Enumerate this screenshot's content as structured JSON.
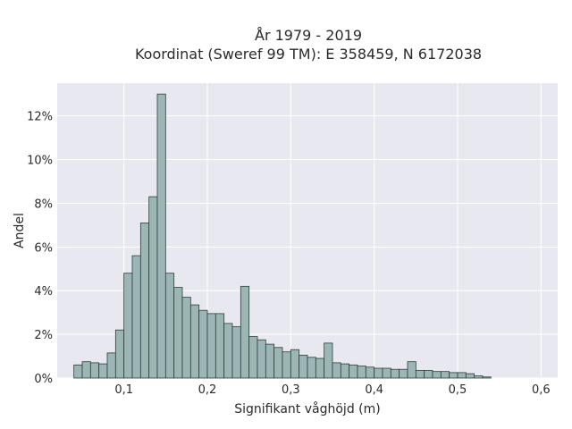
{
  "chart_data": {
    "type": "bar",
    "title_line1": "År 1979 - 2019",
    "title_line2": "Koordinat (Sweref 99 TM): E 358459, N 6172038",
    "xlabel": "Signifikant våghöjd (m)",
    "ylabel": "Andel",
    "xlim": [
      0.02,
      0.62
    ],
    "ylim": [
      0,
      13.5
    ],
    "xticks": [
      0.1,
      0.2,
      0.3,
      0.4,
      0.5,
      0.6
    ],
    "xtick_labels": [
      "0,1",
      "0,2",
      "0,3",
      "0,4",
      "0,5",
      "0,6"
    ],
    "yticks": [
      0,
      2,
      4,
      6,
      8,
      10,
      12
    ],
    "ytick_labels": [
      "0%",
      "2%",
      "4%",
      "6%",
      "8%",
      "10%",
      "12%"
    ],
    "bin_start": 0.04,
    "bin_width": 0.01,
    "values": [
      0.6,
      0.75,
      0.7,
      0.65,
      1.15,
      2.2,
      4.8,
      5.6,
      7.1,
      8.3,
      13.0,
      4.8,
      4.15,
      3.7,
      3.35,
      3.1,
      2.95,
      2.95,
      2.5,
      2.35,
      4.2,
      1.9,
      1.75,
      1.55,
      1.4,
      1.2,
      1.3,
      1.05,
      0.95,
      0.9,
      1.6,
      0.7,
      0.65,
      0.6,
      0.55,
      0.5,
      0.45,
      0.45,
      0.4,
      0.4,
      0.75,
      0.35,
      0.35,
      0.3,
      0.3,
      0.25,
      0.25,
      0.2,
      0.1,
      0.05
    ],
    "bar_color": "#9cb5b5",
    "bar_edge": "#2f3f3f",
    "plot_bg": "#e8e8f0",
    "grid": true
  }
}
